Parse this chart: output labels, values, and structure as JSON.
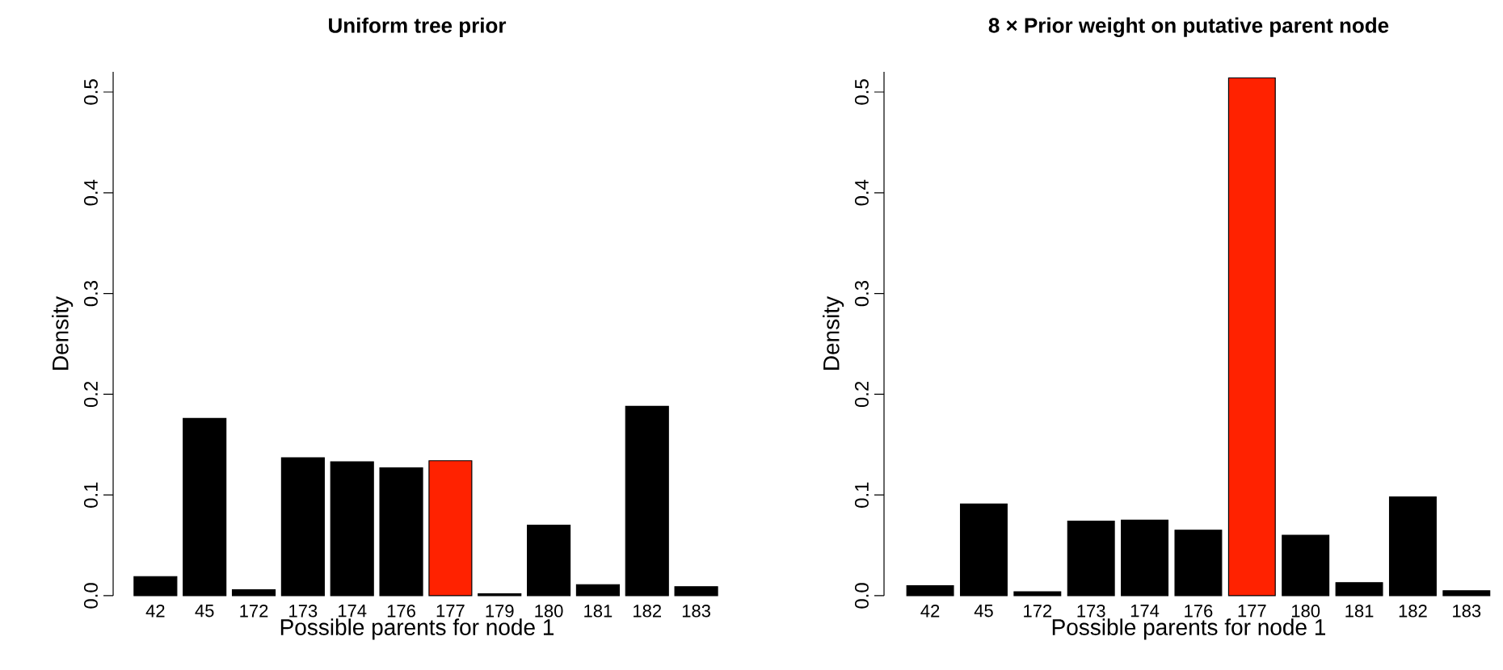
{
  "chart_data": [
    {
      "type": "bar",
      "title": "Uniform tree prior",
      "xlabel": "Possible parents for node 1",
      "ylabel": "Density",
      "categories": [
        "42",
        "45",
        "172",
        "173",
        "174",
        "176",
        "177",
        "179",
        "180",
        "181",
        "182",
        "183"
      ],
      "values": [
        0.019,
        0.176,
        0.006,
        0.137,
        0.133,
        0.127,
        0.134,
        0.002,
        0.07,
        0.011,
        0.188,
        0.009
      ],
      "colors": [
        "#000000",
        "#000000",
        "#000000",
        "#000000",
        "#000000",
        "#000000",
        "#ff2200",
        "#000000",
        "#000000",
        "#000000",
        "#000000",
        "#000000"
      ],
      "ylim": [
        0,
        0.52
      ],
      "yticks": [
        {
          "value": 0,
          "label": "0.0"
        },
        {
          "value": 0.1,
          "label": "0.1"
        },
        {
          "value": 0.2,
          "label": "0.2"
        },
        {
          "value": 0.3,
          "label": "0.3"
        },
        {
          "value": 0.4,
          "label": "0.4"
        },
        {
          "value": 0.5,
          "label": "0.5"
        }
      ]
    },
    {
      "type": "bar",
      "title": "8 × Prior weight on putative parent node",
      "xlabel": "Possible parents for node 1",
      "ylabel": "Density",
      "categories": [
        "42",
        "45",
        "172",
        "173",
        "174",
        "176",
        "177",
        "180",
        "181",
        "182",
        "183"
      ],
      "values": [
        0.01,
        0.091,
        0.004,
        0.074,
        0.075,
        0.065,
        0.514,
        0.06,
        0.013,
        0.098,
        0.005
      ],
      "colors": [
        "#000000",
        "#000000",
        "#000000",
        "#000000",
        "#000000",
        "#000000",
        "#ff2200",
        "#000000",
        "#000000",
        "#000000",
        "#000000"
      ],
      "ylim": [
        0,
        0.52
      ],
      "yticks": [
        {
          "value": 0,
          "label": "0.0"
        },
        {
          "value": 0.1,
          "label": "0.1"
        },
        {
          "value": 0.2,
          "label": "0.2"
        },
        {
          "value": 0.3,
          "label": "0.3"
        },
        {
          "value": 0.4,
          "label": "0.4"
        },
        {
          "value": 0.5,
          "label": "0.5"
        }
      ]
    }
  ]
}
